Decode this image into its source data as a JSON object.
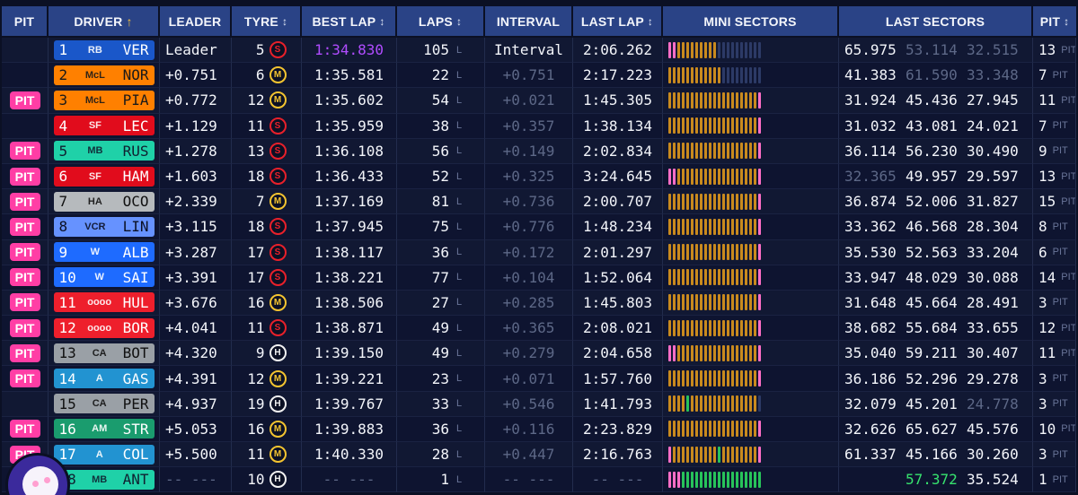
{
  "headers": {
    "pit": "PIT",
    "driver": "DRIVER",
    "driver_arrow": "↑",
    "leader": "LEADER",
    "tyre": "TYRE",
    "best_lap": "BEST LAP",
    "laps": "LAPS",
    "interval": "INTERVAL",
    "last_lap": "LAST LAP",
    "mini_sectors": "MINI SECTORS",
    "last_sectors": "LAST SECTORS",
    "pit_count": "PIT",
    "sort_glyph": "↕"
  },
  "labels": {
    "pit_badge": "PIT",
    "laps_unit": "L",
    "pit_unit": "PIT"
  },
  "colors": {
    "mini_orange": "#c98a1e",
    "mini_pink": "#ff6ec7",
    "mini_green": "#27c35a",
    "mini_blue": "#2c3a66",
    "soft": "#e8202a",
    "medium": "#f4c430",
    "hard": "#f2f2f2"
  },
  "rows": [
    {
      "pit": "",
      "pos": "1",
      "code": "VER",
      "team_bg": "#1a57c9",
      "team_fg": "#ffffff",
      "logo": "RB",
      "leader": "Leader",
      "tyre_age": "5",
      "tyre": "S",
      "best": "1:34.830",
      "best_cls": "purple",
      "laps": "105",
      "interval": "Interval",
      "int_cls": "",
      "last": "2:06.262",
      "mini": "PPOOOOOOOOOBBBBBBBBBB",
      "s1": "65.975",
      "s1c": "",
      "s2": "53.114",
      "s2c": "muted",
      "s3": "32.515",
      "s3c": "muted",
      "pits": "13"
    },
    {
      "pit": "",
      "pos": "2",
      "code": "NOR",
      "team_bg": "#ff8000",
      "team_fg": "#1a1a1a",
      "logo": "McL",
      "leader": "+0.751",
      "tyre_age": "6",
      "tyre": "M",
      "best": "1:35.581",
      "best_cls": "",
      "laps": "22",
      "interval": "+0.751",
      "int_cls": "muted",
      "last": "2:17.223",
      "mini": "OOOOOOOOOOOOBBBBBBBBB",
      "s1": "41.383",
      "s1c": "",
      "s2": "61.590",
      "s2c": "muted",
      "s3": "33.348",
      "s3c": "muted",
      "pits": "7"
    },
    {
      "pit": "PIT",
      "pos": "3",
      "code": "PIA",
      "team_bg": "#ff8000",
      "team_fg": "#1a1a1a",
      "logo": "McL",
      "leader": "+0.772",
      "tyre_age": "12",
      "tyre": "M",
      "best": "1:35.602",
      "best_cls": "",
      "laps": "54",
      "interval": "+0.021",
      "int_cls": "muted",
      "last": "1:45.305",
      "mini": "OOOOOOOOOOOOOOOOOOOOP",
      "s1": "31.924",
      "s1c": "",
      "s2": "45.436",
      "s2c": "",
      "s3": "27.945",
      "s3c": "",
      "pits": "11"
    },
    {
      "pit": "",
      "pos": "4",
      "code": "LEC",
      "team_bg": "#e10c1c",
      "team_fg": "#ffffff",
      "logo": "SF",
      "leader": "+1.129",
      "tyre_age": "11",
      "tyre": "S",
      "best": "1:35.959",
      "best_cls": "",
      "laps": "38",
      "interval": "+0.357",
      "int_cls": "muted",
      "last": "1:38.134",
      "mini": "OOOOOOOOOOOOOOOOOOOOP",
      "s1": "31.032",
      "s1c": "",
      "s2": "43.081",
      "s2c": "",
      "s3": "24.021",
      "s3c": "",
      "pits": "7"
    },
    {
      "pit": "PIT",
      "pos": "5",
      "code": "RUS",
      "team_bg": "#1fd1a8",
      "team_fg": "#102030",
      "logo": "MB",
      "leader": "+1.278",
      "tyre_age": "13",
      "tyre": "S",
      "best": "1:36.108",
      "best_cls": "",
      "laps": "56",
      "interval": "+0.149",
      "int_cls": "muted",
      "last": "2:02.834",
      "mini": "OOOOOOOOOOOOOOOOOOOOP",
      "s1": "36.114",
      "s1c": "",
      "s2": "56.230",
      "s2c": "",
      "s3": "30.490",
      "s3c": "",
      "pits": "9"
    },
    {
      "pit": "PIT",
      "pos": "6",
      "code": "HAM",
      "team_bg": "#e10c1c",
      "team_fg": "#ffffff",
      "logo": "SF",
      "leader": "+1.603",
      "tyre_age": "18",
      "tyre": "S",
      "best": "1:36.433",
      "best_cls": "",
      "laps": "52",
      "interval": "+0.325",
      "int_cls": "muted",
      "last": "3:24.645",
      "mini": "PPOOOOOOOOOOOOOOOOOOP",
      "s1": "32.365",
      "s1c": "muted",
      "s2": "49.957",
      "s2c": "",
      "s3": "29.597",
      "s3c": "",
      "pits": "13"
    },
    {
      "pit": "PIT",
      "pos": "7",
      "code": "OCO",
      "team_bg": "#b6babd",
      "team_fg": "#111111",
      "logo": "HA",
      "leader": "+2.339",
      "tyre_age": "7",
      "tyre": "M",
      "best": "1:37.169",
      "best_cls": "",
      "laps": "81",
      "interval": "+0.736",
      "int_cls": "muted",
      "last": "2:00.707",
      "mini": "OOOOOOOOOOOOOOOOOOOOP",
      "s1": "36.874",
      "s1c": "",
      "s2": "52.006",
      "s2c": "",
      "s3": "31.827",
      "s3c": "",
      "pits": "15"
    },
    {
      "pit": "PIT",
      "pos": "8",
      "code": "LIN",
      "team_bg": "#6692ff",
      "team_fg": "#0b1024",
      "logo": "VCR",
      "leader": "+3.115",
      "tyre_age": "18",
      "tyre": "S",
      "best": "1:37.945",
      "best_cls": "",
      "laps": "75",
      "interval": "+0.776",
      "int_cls": "muted",
      "last": "1:48.234",
      "mini": "OOOOOOOOOOOOOOOOOOOOP",
      "s1": "33.362",
      "s1c": "",
      "s2": "46.568",
      "s2c": "",
      "s3": "28.304",
      "s3c": "",
      "pits": "8"
    },
    {
      "pit": "PIT",
      "pos": "9",
      "code": "ALB",
      "team_bg": "#1e6bff",
      "team_fg": "#ffffff",
      "logo": "W",
      "leader": "+3.287",
      "tyre_age": "17",
      "tyre": "S",
      "best": "1:38.117",
      "best_cls": "",
      "laps": "36",
      "interval": "+0.172",
      "int_cls": "muted",
      "last": "2:01.297",
      "mini": "OOOOOOOOOOOOOOOOOOOOP",
      "s1": "35.530",
      "s1c": "",
      "s2": "52.563",
      "s2c": "",
      "s3": "33.204",
      "s3c": "",
      "pits": "6"
    },
    {
      "pit": "PIT",
      "pos": "10",
      "code": "SAI",
      "team_bg": "#1e6bff",
      "team_fg": "#ffffff",
      "logo": "W",
      "leader": "+3.391",
      "tyre_age": "17",
      "tyre": "S",
      "best": "1:38.221",
      "best_cls": "",
      "laps": "77",
      "interval": "+0.104",
      "int_cls": "muted",
      "last": "1:52.064",
      "mini": "OOOOOOOOOOOOOOOOOOOOP",
      "s1": "33.947",
      "s1c": "",
      "s2": "48.029",
      "s2c": "",
      "s3": "30.088",
      "s3c": "",
      "pits": "14"
    },
    {
      "pit": "PIT",
      "pos": "11",
      "code": "HUL",
      "team_bg": "#ee1f2c",
      "team_fg": "#ffffff",
      "logo": "oooo",
      "leader": "+3.676",
      "tyre_age": "16",
      "tyre": "M",
      "best": "1:38.506",
      "best_cls": "",
      "laps": "27",
      "interval": "+0.285",
      "int_cls": "muted",
      "last": "1:45.803",
      "mini": "OOOOOOOOOOOOOOOOOOOOP",
      "s1": "31.648",
      "s1c": "",
      "s2": "45.664",
      "s2c": "",
      "s3": "28.491",
      "s3c": "",
      "pits": "3"
    },
    {
      "pit": "PIT",
      "pos": "12",
      "code": "BOR",
      "team_bg": "#ee1f2c",
      "team_fg": "#ffffff",
      "logo": "oooo",
      "leader": "+4.041",
      "tyre_age": "11",
      "tyre": "S",
      "best": "1:38.871",
      "best_cls": "",
      "laps": "49",
      "interval": "+0.365",
      "int_cls": "muted",
      "last": "2:08.021",
      "mini": "OOOOOOOOOOOOOOOOOOOOP",
      "s1": "38.682",
      "s1c": "",
      "s2": "55.684",
      "s2c": "",
      "s3": "33.655",
      "s3c": "",
      "pits": "12"
    },
    {
      "pit": "PIT",
      "pos": "13",
      "code": "BOT",
      "team_bg": "#9aa0a6",
      "team_fg": "#111111",
      "logo": "CA",
      "leader": "+4.320",
      "tyre_age": "9",
      "tyre": "H",
      "best": "1:39.150",
      "best_cls": "",
      "laps": "49",
      "interval": "+0.279",
      "int_cls": "muted",
      "last": "2:04.658",
      "mini": "PPOOOOOOOOOOOOOOOOOOP",
      "s1": "35.040",
      "s1c": "",
      "s2": "59.211",
      "s2c": "",
      "s3": "30.407",
      "s3c": "",
      "pits": "11"
    },
    {
      "pit": "PIT",
      "pos": "14",
      "code": "GAS",
      "team_bg": "#2293d1",
      "team_fg": "#ffffff",
      "logo": "A",
      "leader": "+4.391",
      "tyre_age": "12",
      "tyre": "M",
      "best": "1:39.221",
      "best_cls": "",
      "laps": "23",
      "interval": "+0.071",
      "int_cls": "muted",
      "last": "1:57.760",
      "mini": "OOOOOOOOOOOOOOOOOOOOP",
      "s1": "36.186",
      "s1c": "",
      "s2": "52.296",
      "s2c": "",
      "s3": "29.278",
      "s3c": "",
      "pits": "3"
    },
    {
      "pit": "",
      "pos": "15",
      "code": "PER",
      "team_bg": "#9aa0a6",
      "team_fg": "#111111",
      "logo": "CA",
      "leader": "+4.937",
      "tyre_age": "19",
      "tyre": "H",
      "best": "1:39.767",
      "best_cls": "",
      "laps": "33",
      "interval": "+0.546",
      "int_cls": "muted",
      "last": "1:41.793",
      "mini": "OOOOGOOOOOOOOOOOOOOOB",
      "s1": "32.079",
      "s1c": "",
      "s2": "45.201",
      "s2c": "",
      "s3": "24.778",
      "s3c": "muted",
      "pits": "3"
    },
    {
      "pit": "PIT",
      "pos": "16",
      "code": "STR",
      "team_bg": "#1a9c6e",
      "team_fg": "#ffffff",
      "logo": "AM",
      "leader": "+5.053",
      "tyre_age": "16",
      "tyre": "M",
      "best": "1:39.883",
      "best_cls": "",
      "laps": "36",
      "interval": "+0.116",
      "int_cls": "muted",
      "last": "2:23.829",
      "mini": "OOOOOOOOOOOOOOOOOOOOP",
      "s1": "32.626",
      "s1c": "",
      "s2": "65.627",
      "s2c": "",
      "s3": "45.576",
      "s3c": "",
      "pits": "10"
    },
    {
      "pit": "PIT",
      "pos": "17",
      "code": "COL",
      "team_bg": "#2293d1",
      "team_fg": "#ffffff",
      "logo": "A",
      "leader": "+5.500",
      "tyre_age": "11",
      "tyre": "M",
      "best": "1:40.330",
      "best_cls": "",
      "laps": "28",
      "interval": "+0.447",
      "int_cls": "muted",
      "last": "2:16.763",
      "mini": "POOOOOOOOOOGOOOOOOOOP",
      "s1": "61.337",
      "s1c": "",
      "s2": "45.166",
      "s2c": "",
      "s3": "30.260",
      "s3c": "",
      "pits": "3"
    },
    {
      "pit": "",
      "pos": "18",
      "code": "ANT",
      "team_bg": "#1fd1a8",
      "team_fg": "#102030",
      "logo": "MB",
      "leader": "-- ---",
      "tyre_age": "10",
      "tyre": "H",
      "best": "-- ---",
      "best_cls": "muted",
      "laps": "1",
      "interval": "-- ---",
      "int_cls": "muted",
      "last": "-- ---",
      "mini": "PPPGGGGGGGGGGGGGGGGGG",
      "s1": "",
      "s1c": "",
      "s2": "57.372",
      "s2c": "green",
      "s3": "35.524",
      "s3c": "",
      "pits": "1"
    }
  ]
}
